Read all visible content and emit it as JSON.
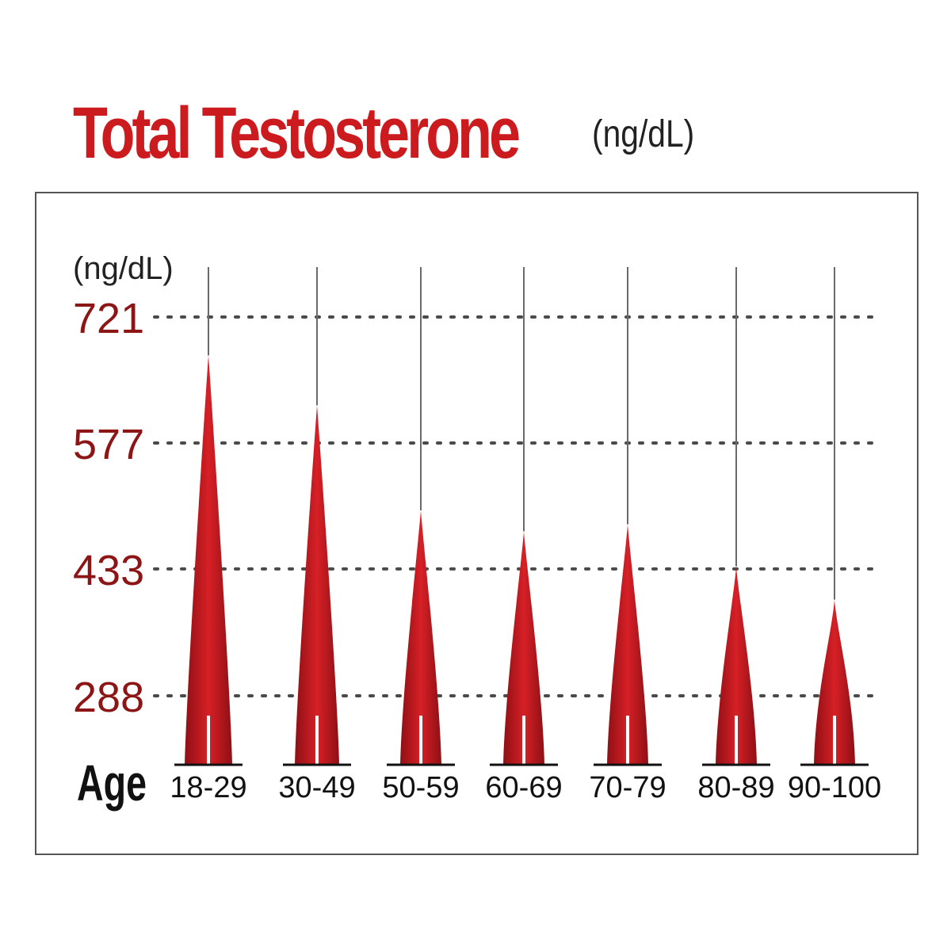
{
  "title": "Total Testosterone",
  "title_unit": "(ng/dL)",
  "colors": {
    "accent": "#cc1b1f",
    "tick_text": "#8c1515",
    "frame": "#555555"
  },
  "chart_data": {
    "type": "bar",
    "title": "Total Testosterone (ng/dL)",
    "ylabel": "(ng/dL)",
    "xlabel": "Age",
    "categories": [
      "18-29",
      "30-49",
      "50-59",
      "60-69",
      "70-79",
      "80-89",
      "90-100"
    ],
    "values": [
      677,
      620,
      500,
      476,
      484,
      436,
      398
    ],
    "yticks": [
      288,
      433,
      577,
      721
    ],
    "ylim": [
      190,
      780
    ],
    "grid": "horizontal dotted at y ticks",
    "legend": "none"
  }
}
